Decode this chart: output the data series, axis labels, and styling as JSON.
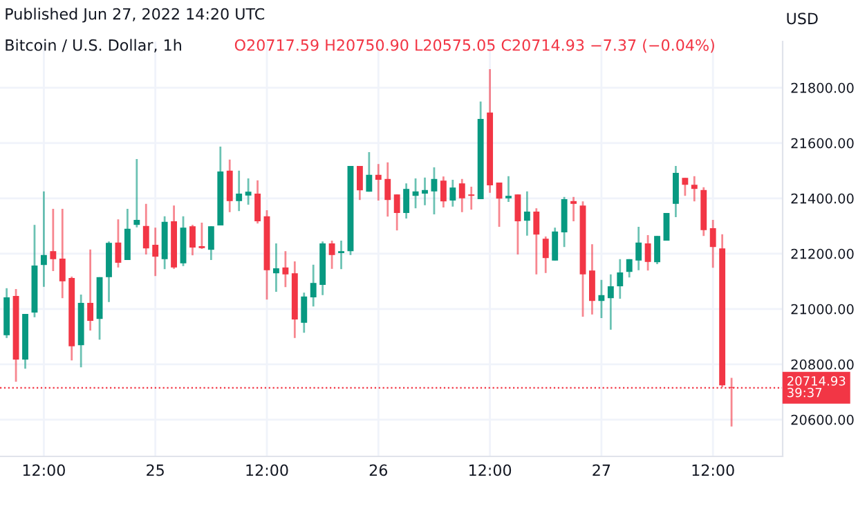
{
  "chart_data": {
    "type": "candlestick",
    "title": "Bitcoin / U.S. Dollar, 1h",
    "subtitle": "O20717.59 H20750.90 L20575.05 C20714.93 −7.37 (−0.04%)",
    "ylabel": "USD",
    "annotations": [
      "Published Jun 27, 2022 14:20 UTC"
    ],
    "x": [
      "2022-06-24T08:00",
      "2022-06-24T09:00",
      "2022-06-24T10:00",
      "2022-06-24T11:00",
      "2022-06-24T12:00",
      "2022-06-24T13:00",
      "2022-06-24T14:00",
      "2022-06-24T15:00",
      "2022-06-24T16:00",
      "2022-06-24T17:00",
      "2022-06-24T18:00",
      "2022-06-24T19:00",
      "2022-06-24T20:00",
      "2022-06-24T21:00",
      "2022-06-24T22:00",
      "2022-06-24T23:00",
      "2022-06-25T00:00",
      "2022-06-25T01:00",
      "2022-06-25T02:00",
      "2022-06-25T03:00",
      "2022-06-25T04:00",
      "2022-06-25T05:00",
      "2022-06-25T06:00",
      "2022-06-25T07:00",
      "2022-06-25T08:00",
      "2022-06-25T09:00",
      "2022-06-25T10:00",
      "2022-06-25T11:00",
      "2022-06-25T12:00",
      "2022-06-25T13:00",
      "2022-06-25T14:00",
      "2022-06-25T15:00",
      "2022-06-25T16:00",
      "2022-06-25T17:00",
      "2022-06-25T18:00",
      "2022-06-25T19:00",
      "2022-06-25T20:00",
      "2022-06-25T21:00",
      "2022-06-25T22:00",
      "2022-06-25T23:00",
      "2022-06-26T00:00",
      "2022-06-26T01:00",
      "2022-06-26T02:00",
      "2022-06-26T03:00",
      "2022-06-26T04:00",
      "2022-06-26T05:00",
      "2022-06-26T06:00",
      "2022-06-26T07:00",
      "2022-06-26T08:00",
      "2022-06-26T09:00",
      "2022-06-26T10:00",
      "2022-06-26T11:00",
      "2022-06-26T12:00",
      "2022-06-26T13:00",
      "2022-06-26T14:00",
      "2022-06-26T15:00",
      "2022-06-26T16:00",
      "2022-06-26T17:00",
      "2022-06-26T18:00",
      "2022-06-26T19:00",
      "2022-06-26T20:00",
      "2022-06-26T21:00",
      "2022-06-26T22:00",
      "2022-06-26T23:00",
      "2022-06-27T00:00",
      "2022-06-27T01:00",
      "2022-06-27T02:00",
      "2022-06-27T03:00",
      "2022-06-27T04:00",
      "2022-06-27T05:00",
      "2022-06-27T06:00",
      "2022-06-27T07:00",
      "2022-06-27T08:00",
      "2022-06-27T09:00",
      "2022-06-27T10:00",
      "2022-06-27T11:00",
      "2022-06-27T12:00",
      "2022-06-27T13:00",
      "2022-06-27T14:00"
    ],
    "ohlc": [
      [
        20905,
        21075,
        20895,
        21042
      ],
      [
        21047,
        21072,
        20737,
        20817
      ],
      [
        20817,
        20982,
        20784,
        20982
      ],
      [
        20987,
        21304,
        20970,
        21157
      ],
      [
        21159,
        21425,
        21080,
        21195
      ],
      [
        21209,
        21362,
        21137,
        21180
      ],
      [
        21182,
        21362,
        21039,
        21100
      ],
      [
        21112,
        21117,
        20814,
        20865
      ],
      [
        20869,
        21052,
        20789,
        21022
      ],
      [
        21022,
        21215,
        20922,
        20957
      ],
      [
        20964,
        21115,
        20889,
        21115
      ],
      [
        21115,
        21244,
        21025,
        21239
      ],
      [
        21240,
        21324,
        21150,
        21167
      ],
      [
        21177,
        21362,
        21177,
        21290
      ],
      [
        21304,
        21542,
        21295,
        21322
      ],
      [
        21300,
        21380,
        21197,
        21219
      ],
      [
        21232,
        21294,
        21119,
        21189
      ],
      [
        21180,
        21335,
        21144,
        21315
      ],
      [
        21317,
        21374,
        21145,
        21150
      ],
      [
        21165,
        21335,
        21155,
        21294
      ],
      [
        21299,
        21304,
        21194,
        21222
      ],
      [
        21227,
        21312,
        21217,
        21220
      ],
      [
        21214,
        21299,
        21177,
        21299
      ],
      [
        21302,
        21587,
        21302,
        21497
      ],
      [
        21500,
        21540,
        21350,
        21390
      ],
      [
        21390,
        21500,
        21354,
        21417
      ],
      [
        21410,
        21472,
        21377,
        21424
      ],
      [
        21417,
        21465,
        21309,
        21317
      ],
      [
        21335,
        21357,
        21034,
        21140
      ],
      [
        21129,
        21237,
        21062,
        21147
      ],
      [
        21150,
        21209,
        21079,
        21125
      ],
      [
        21129,
        21172,
        20895,
        20962
      ],
      [
        20950,
        21059,
        20914,
        21045
      ],
      [
        21042,
        21160,
        21009,
        21094
      ],
      [
        21087,
        21244,
        21050,
        21237
      ],
      [
        21237,
        21247,
        21145,
        21195
      ],
      [
        21202,
        21247,
        21144,
        21209
      ],
      [
        21209,
        21517,
        21195,
        21517
      ],
      [
        21517,
        21517,
        21394,
        21429
      ],
      [
        21424,
        21567,
        21424,
        21485
      ],
      [
        21485,
        21524,
        21392,
        21467
      ],
      [
        21470,
        21530,
        21334,
        21394
      ],
      [
        21414,
        21414,
        21284,
        21347
      ],
      [
        21347,
        21454,
        21327,
        21434
      ],
      [
        21409,
        21472,
        21364,
        21425
      ],
      [
        21417,
        21475,
        21375,
        21430
      ],
      [
        21425,
        21512,
        21342,
        21470
      ],
      [
        21464,
        21479,
        21367,
        21389
      ],
      [
        21392,
        21467,
        21370,
        21439
      ],
      [
        21454,
        21470,
        21350,
        21400
      ],
      [
        21414,
        21442,
        21359,
        21409
      ],
      [
        21397,
        21750,
        21397,
        21687
      ],
      [
        21710,
        21867,
        21420,
        21447
      ],
      [
        21457,
        21457,
        21297,
        21399
      ],
      [
        21400,
        21480,
        21387,
        21409
      ],
      [
        21414,
        21414,
        21197,
        21317
      ],
      [
        21319,
        21425,
        21265,
        21352
      ],
      [
        21352,
        21364,
        21125,
        21269
      ],
      [
        21254,
        21262,
        21130,
        21184
      ],
      [
        21175,
        21294,
        21175,
        21280
      ],
      [
        21277,
        21405,
        21224,
        21397
      ],
      [
        21390,
        21405,
        21317,
        21380
      ],
      [
        21374,
        21389,
        20972,
        21125
      ],
      [
        21139,
        21234,
        20980,
        21029
      ],
      [
        21029,
        21105,
        20967,
        21050
      ],
      [
        21039,
        21125,
        20925,
        21082
      ],
      [
        21082,
        21180,
        21037,
        21132
      ],
      [
        21134,
        21180,
        21114,
        21180
      ],
      [
        21175,
        21297,
        21140,
        21240
      ],
      [
        21237,
        21267,
        21139,
        21170
      ],
      [
        21169,
        21264,
        21162,
        21264
      ],
      [
        21247,
        21347,
        21247,
        21347
      ],
      [
        21380,
        21517,
        21332,
        21492
      ],
      [
        21474,
        21474,
        21409,
        21449
      ],
      [
        21449,
        21480,
        21389,
        21434
      ],
      [
        21430,
        21440,
        21264,
        21285
      ],
      [
        21292,
        21322,
        21149,
        21224
      ],
      [
        21219,
        21270,
        20717,
        20724
      ],
      [
        20717.59,
        20750.9,
        20575.05,
        20714.93
      ]
    ],
    "colors": [
      "#089981",
      "#f23645",
      "#089981",
      "#089981",
      "#089981",
      "#f23645",
      "#f23645",
      "#f23645",
      "#089981",
      "#f23645",
      "#089981",
      "#089981",
      "#f23645",
      "#089981",
      "#089981",
      "#f23645",
      "#f23645",
      "#089981",
      "#f23645",
      "#089981",
      "#f23645",
      "#f23645",
      "#089981",
      "#089981",
      "#f23645",
      "#089981",
      "#089981",
      "#f23645",
      "#f23645",
      "#089981",
      "#f23645",
      "#f23645",
      "#089981",
      "#089981",
      "#089981",
      "#f23645",
      "#089981",
      "#089981",
      "#f23645",
      "#089981",
      "#f23645",
      "#f23645",
      "#f23645",
      "#089981",
      "#089981",
      "#089981",
      "#089981",
      "#f23645",
      "#089981",
      "#f23645",
      "#f23645",
      "#089981",
      "#f23645",
      "#f23645",
      "#089981",
      "#f23645",
      "#089981",
      "#f23645",
      "#f23645",
      "#089981",
      "#089981",
      "#f23645",
      "#f23645",
      "#f23645",
      "#089981",
      "#089981",
      "#089981",
      "#089981",
      "#089981",
      "#f23645",
      "#089981",
      "#089981",
      "#089981",
      "#f23645",
      "#f23645",
      "#f23645",
      "#f23645",
      "#f23645",
      "#f23645"
    ],
    "xlim": [
      "2022-06-24T07:17",
      "2022-06-27T19:30"
    ],
    "xticks": [
      {
        "value": "2022-06-24T12:00",
        "label": "12:00"
      },
      {
        "value": "2022-06-25T00:00",
        "label": "25"
      },
      {
        "value": "2022-06-25T12:00",
        "label": "12:00"
      },
      {
        "value": "2022-06-26T00:00",
        "label": "26"
      },
      {
        "value": "2022-06-26T12:00",
        "label": "12:00"
      },
      {
        "value": "2022-06-27T00:00",
        "label": "27"
      },
      {
        "value": "2022-06-27T12:00",
        "label": "12:00"
      }
    ],
    "ylim": [
      20467,
      21967
    ],
    "yticks": [
      {
        "value": 20600,
        "label": "20600.00"
      },
      {
        "value": 20800,
        "label": "20800.00"
      },
      {
        "value": 21000,
        "label": "21000.00"
      },
      {
        "value": 21200,
        "label": "21200.00"
      },
      {
        "value": 21400,
        "label": "21400.00"
      },
      {
        "value": 21600,
        "label": "21600.00"
      },
      {
        "value": 21800,
        "label": "21800.00"
      }
    ],
    "ref_lines": [
      {
        "axis": "y",
        "value": 20714.93,
        "label": "20714.93\n39:37",
        "color": "#f23645",
        "line_style": "dotted"
      }
    ],
    "grid": true
  }
}
